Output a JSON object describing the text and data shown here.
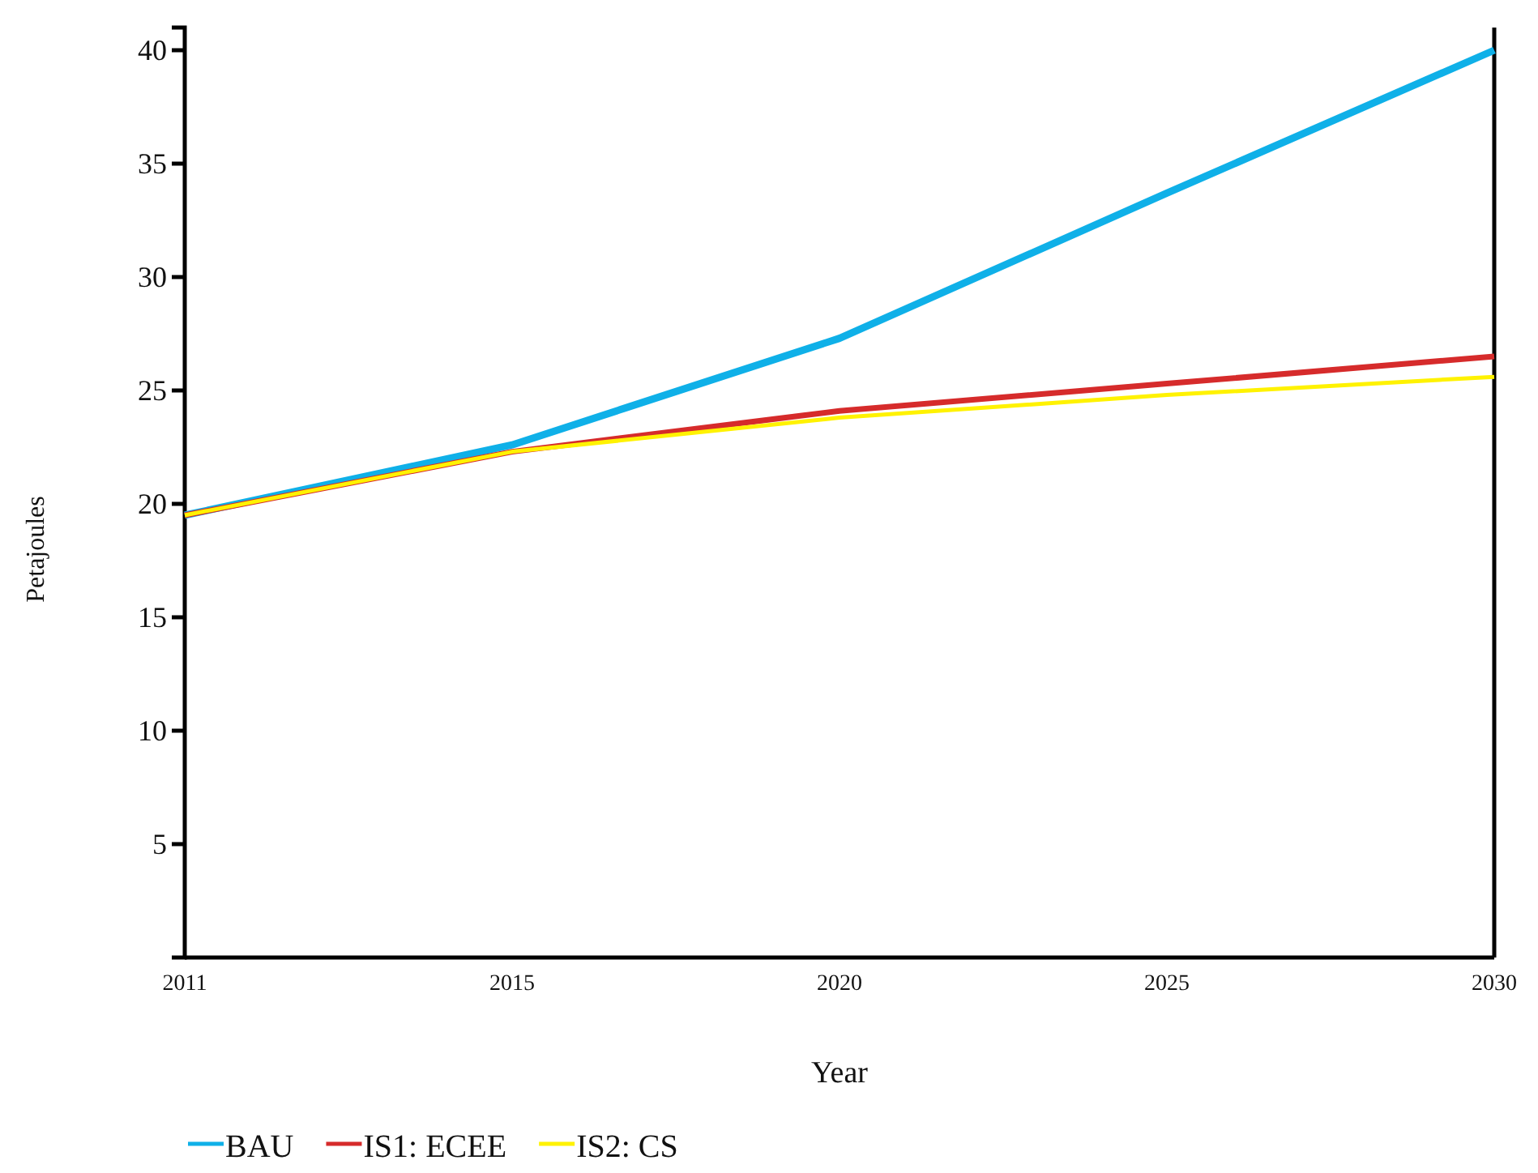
{
  "chart_data": {
    "type": "line",
    "xlabel": "Year",
    "ylabel": "Petajoules",
    "categories": [
      "2011",
      "2015",
      "2020",
      "2025",
      "2030"
    ],
    "series": [
      {
        "name": "BAU",
        "color": "#0fb0e8",
        "values": [
          19.5,
          22.6,
          27.3,
          33.7,
          40
        ]
      },
      {
        "name": "IS1: ECEE",
        "color": "#d62b2b",
        "values": [
          19.5,
          22.3,
          24.1,
          25.3,
          26.5
        ]
      },
      {
        "name": "IS2: CS",
        "color": "#fff200",
        "values": [
          19.5,
          22.3,
          23.8,
          24.8,
          25.6
        ]
      }
    ],
    "ylim": [
      0,
      41
    ],
    "yticks": [
      5,
      10,
      15,
      20,
      25,
      30,
      35,
      40
    ],
    "legend": "bottom",
    "grid": false,
    "marker": "none",
    "line_style": "solid"
  }
}
